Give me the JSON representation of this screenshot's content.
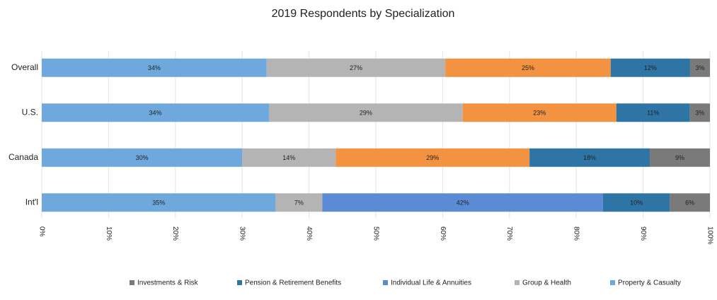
{
  "chart_data": {
    "type": "bar",
    "orientation": "horizontal",
    "stack": "percent",
    "title": "2019 Respondents by Specialization",
    "categories": [
      "Overall",
      "U.S.",
      "Canada",
      "Int'l"
    ],
    "series": [
      {
        "name": "Property & Casualty",
        "color": "#6fa8dc",
        "values": [
          34,
          34,
          30,
          35
        ],
        "value_labels": [
          "34%",
          "34%",
          "30%",
          "35%"
        ]
      },
      {
        "name": "Group & Health",
        "color": "#b4b4b4",
        "values": [
          27,
          29,
          14,
          7
        ],
        "value_labels": [
          "27%",
          "29%",
          "14%",
          "7%"
        ]
      },
      {
        "name": "Individual Life & Annuities",
        "color": "#5b8bd4",
        "colors": [
          "#f39241",
          "#f39241",
          "#f39241",
          "#5b8bd4"
        ],
        "values": [
          25,
          23,
          29,
          42
        ],
        "value_labels": [
          "25%",
          "23%",
          "29%",
          "42%"
        ]
      },
      {
        "name": "Pension & Retirement Benefits",
        "color": "#2e75a6",
        "values": [
          12,
          11,
          18,
          10
        ],
        "value_labels": [
          "12%",
          "11%",
          "18%",
          "10%"
        ]
      },
      {
        "name": "Investments & Risk",
        "color": "#7a7a7a",
        "values": [
          3,
          3,
          9,
          6
        ],
        "value_labels": [
          "3%",
          "3%",
          "9%",
          "6%"
        ]
      }
    ],
    "xlim": [
      0,
      100
    ],
    "xticks": [
      {
        "value": 0,
        "label": "0%"
      },
      {
        "value": 10,
        "label": "10%"
      },
      {
        "value": 20,
        "label": "20%"
      },
      {
        "value": 30,
        "label": "30%"
      },
      {
        "value": 40,
        "label": "40%"
      },
      {
        "value": 50,
        "label": "50%"
      },
      {
        "value": 60,
        "label": "60%"
      },
      {
        "value": 70,
        "label": "70%"
      },
      {
        "value": 80,
        "label": "80%"
      },
      {
        "value": 90,
        "label": "90%"
      },
      {
        "value": 100,
        "label": "100%"
      }
    ],
    "grid": true,
    "legend": "bottom",
    "legend_order": "reversed"
  }
}
